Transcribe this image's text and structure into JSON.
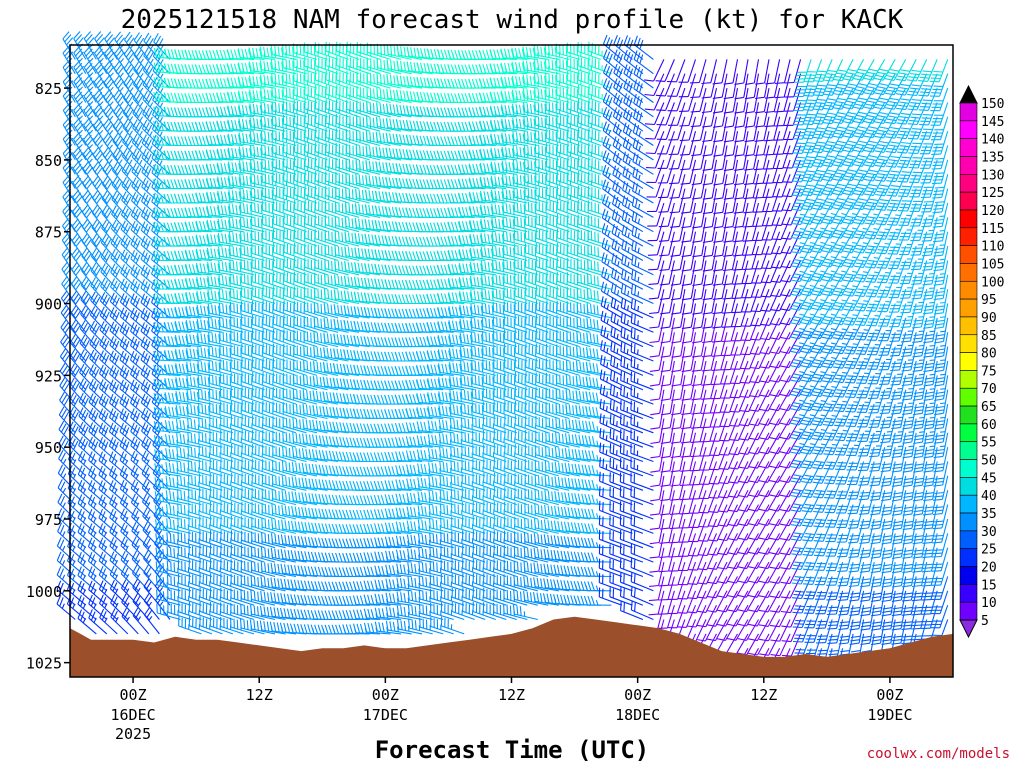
{
  "chart_data": {
    "type": "wind_barbs",
    "title": "2025121518 NAM forecast wind profile (kt) for KACK",
    "xlabel": "Forecast Time (UTC)",
    "credit": "coolwx.com/models",
    "y_ticks": [
      825,
      850,
      875,
      900,
      925,
      950,
      975,
      1000,
      1025
    ],
    "ylim": [
      810,
      1030
    ],
    "x_ticks": [
      {
        "label": "00Z",
        "sub": "16DEC",
        "sub2": "2025",
        "hour": 6
      },
      {
        "label": "12Z",
        "sub": "",
        "sub2": "",
        "hour": 18
      },
      {
        "label": "00Z",
        "sub": "17DEC",
        "sub2": "",
        "hour": 30
      },
      {
        "label": "12Z",
        "sub": "",
        "sub2": "",
        "hour": 42
      },
      {
        "label": "00Z",
        "sub": "18DEC",
        "sub2": "",
        "hour": 54
      },
      {
        "label": "12Z",
        "sub": "",
        "sub2": "",
        "hour": 66
      },
      {
        "label": "00Z",
        "sub": "19DEC",
        "sub2": "",
        "hour": 78
      }
    ],
    "xlim": [
      0,
      84
    ],
    "colorbar_levels": [
      5,
      10,
      15,
      20,
      25,
      30,
      35,
      40,
      45,
      50,
      55,
      60,
      65,
      70,
      75,
      80,
      85,
      90,
      95,
      100,
      105,
      110,
      115,
      120,
      125,
      130,
      135,
      140,
      145,
      150
    ],
    "colorbar_colors": [
      "#8a2be2",
      "#7000ff",
      "#3a00ff",
      "#0000ee",
      "#0030ff",
      "#0060ff",
      "#0090ff",
      "#00b6ff",
      "#00dde0",
      "#00ffd0",
      "#00ff90",
      "#00ff40",
      "#20e020",
      "#60ff00",
      "#b0ff00",
      "#ffff00",
      "#ffe000",
      "#ffc000",
      "#ffa000",
      "#ff8c00",
      "#ff7000",
      "#ff5000",
      "#ff2000",
      "#ff0000",
      "#ff0050",
      "#ff0080",
      "#ff00b0",
      "#ff00d0",
      "#ff00ff",
      "#e000e0"
    ],
    "terrain_color": "#9b4f2a",
    "surface_pressure": [
      [
        0,
        1013
      ],
      [
        1,
        1015
      ],
      [
        2,
        1017
      ],
      [
        6,
        1017
      ],
      [
        8,
        1018
      ],
      [
        10,
        1016
      ],
      [
        12,
        1017
      ],
      [
        14,
        1017
      ],
      [
        16,
        1018
      ],
      [
        18,
        1019
      ],
      [
        20,
        1020
      ],
      [
        22,
        1021
      ],
      [
        24,
        1020
      ],
      [
        26,
        1020
      ],
      [
        28,
        1019
      ],
      [
        30,
        1020
      ],
      [
        32,
        1020
      ],
      [
        34,
        1019
      ],
      [
        36,
        1018
      ],
      [
        38,
        1017
      ],
      [
        40,
        1016
      ],
      [
        42,
        1015
      ],
      [
        44,
        1013
      ],
      [
        46,
        1010
      ],
      [
        48,
        1009
      ],
      [
        50,
        1010
      ],
      [
        52,
        1011
      ],
      [
        54,
        1012
      ],
      [
        56,
        1013
      ],
      [
        58,
        1015
      ],
      [
        60,
        1018
      ],
      [
        62,
        1021
      ],
      [
        64,
        1022
      ],
      [
        66,
        1023
      ],
      [
        68,
        1023
      ],
      [
        70,
        1022
      ],
      [
        72,
        1023
      ],
      [
        74,
        1022
      ],
      [
        76,
        1021
      ],
      [
        78,
        1020
      ],
      [
        80,
        1018
      ],
      [
        82,
        1016
      ],
      [
        84,
        1015
      ]
    ],
    "wind_regimes": [
      {
        "from_hour": 0,
        "to_hour": 10,
        "direction_deg": 320,
        "speed_kt": 30
      },
      {
        "from_hour": 10,
        "to_hour": 52,
        "direction_deg": 280,
        "speed_kt": 40
      },
      {
        "from_hour": 52,
        "to_hour": 56,
        "direction_deg": 300,
        "speed_kt": 25
      },
      {
        "from_hour": 56,
        "to_hour": 70,
        "direction_deg": 200,
        "speed_kt": 10
      },
      {
        "from_hour": 70,
        "to_hour": 84,
        "direction_deg": 200,
        "speed_kt": 35
      }
    ]
  }
}
